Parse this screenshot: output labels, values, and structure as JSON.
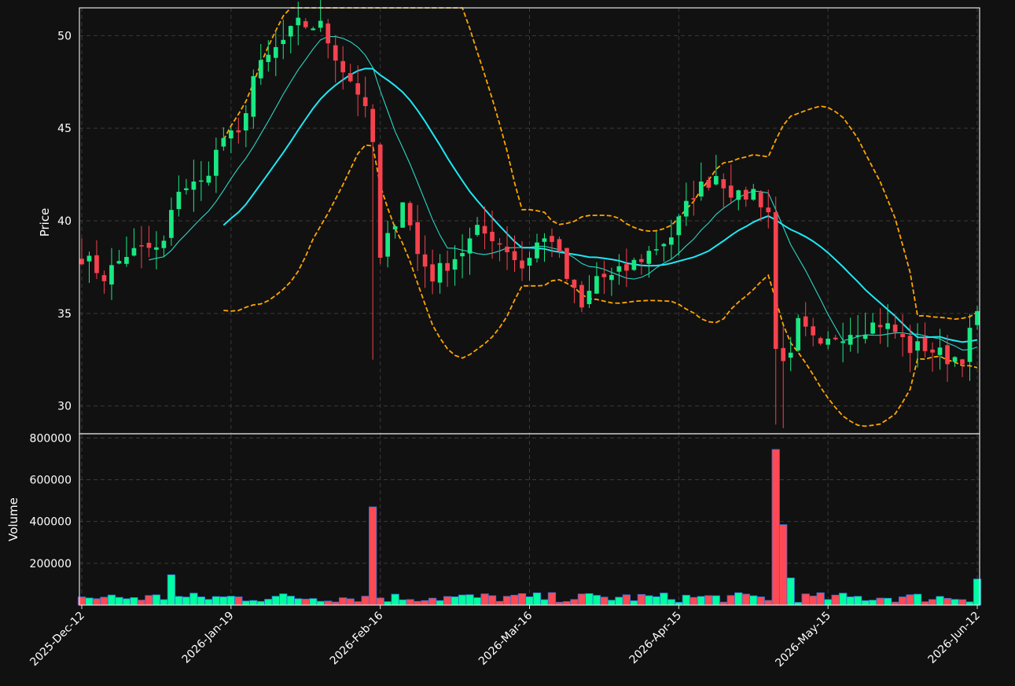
{
  "colors": {
    "background": "#111111",
    "up": "#19e883",
    "down": "#f5424e",
    "sma_fast": "#2bd6c6",
    "sma_slow": "#1ee8f5",
    "bollinger": "#ffa500",
    "volume_up": "#00ffa0",
    "volume_down": "#ff4a55",
    "volume_edge": "#2f6fd6"
  },
  "chart_data": {
    "type": "candlestick",
    "panels": [
      {
        "name": "price",
        "ylabel": "Price",
        "ylim": [
          28.5,
          51.5
        ],
        "yticks": [
          30,
          35,
          40,
          45,
          50
        ]
      },
      {
        "name": "volume",
        "ylabel": "Volume",
        "ylim": [
          0,
          820000
        ],
        "yticks": [
          200000,
          400000,
          600000,
          800000
        ]
      }
    ],
    "xtick_labels": [
      {
        "index": 0,
        "label": "2025-Dec-12"
      },
      {
        "index": 20,
        "label": "2026-Jan-19"
      },
      {
        "index": 40,
        "label": "2026-Feb-16"
      },
      {
        "index": 60,
        "label": "2026-Mar-16"
      },
      {
        "index": 80,
        "label": "2026-Apr-15"
      },
      {
        "index": 100,
        "label": "2026-May-15"
      },
      {
        "index": 120,
        "label": "2026-Jun-12"
      }
    ],
    "grid": true,
    "ohlc_anchors": [
      [
        0,
        38.1
      ],
      [
        3,
        37.0
      ],
      [
        6,
        38.2
      ],
      [
        9,
        38.5
      ],
      [
        10,
        38.4
      ],
      [
        11,
        38.8
      ],
      [
        13,
        41.8
      ],
      [
        16,
        42.0
      ],
      [
        19,
        44.5
      ],
      [
        21,
        44.5
      ],
      [
        23,
        47.8
      ],
      [
        25,
        48.8
      ],
      [
        29,
        50.6
      ],
      [
        32,
        50.5
      ],
      [
        35,
        48.2
      ],
      [
        37,
        47.0
      ],
      [
        38,
        45.8
      ],
      [
        39,
        44.2
      ],
      [
        40,
        37.8
      ],
      [
        41,
        39.0
      ],
      [
        43,
        41.2
      ],
      [
        45,
        38.2
      ],
      [
        47,
        37.0
      ],
      [
        49,
        37.7
      ],
      [
        51,
        38.4
      ],
      [
        53,
        39.4
      ],
      [
        55,
        39.2
      ],
      [
        57,
        38.5
      ],
      [
        59,
        37.5
      ],
      [
        61,
        38.8
      ],
      [
        63,
        39.1
      ],
      [
        65,
        36.9
      ],
      [
        67,
        35.2
      ],
      [
        69,
        37.0
      ],
      [
        71,
        36.9
      ],
      [
        73,
        37.4
      ],
      [
        76,
        38.3
      ],
      [
        79,
        39.2
      ],
      [
        82,
        41.5
      ],
      [
        85,
        42.5
      ],
      [
        88,
        41.2
      ],
      [
        90,
        41.6
      ],
      [
        92,
        40.5
      ],
      [
        93,
        33.0
      ],
      [
        95,
        32.5
      ],
      [
        96,
        34.4
      ],
      [
        99,
        33.0
      ],
      [
        101,
        33.8
      ],
      [
        104,
        34.2
      ],
      [
        107,
        34.5
      ],
      [
        109,
        34.0
      ],
      [
        111,
        33.1
      ],
      [
        113,
        33.2
      ],
      [
        116,
        32.6
      ],
      [
        118,
        32.7
      ],
      [
        120,
        35.0
      ]
    ],
    "notable_volume_spikes": [
      {
        "index": 12,
        "volume": 145000
      },
      {
        "index": 39,
        "volume": 470000
      },
      {
        "index": 93,
        "volume": 745000
      },
      {
        "index": 94,
        "volume": 385000
      },
      {
        "index": 95,
        "volume": 130000
      },
      {
        "index": 120,
        "volume": 125000
      }
    ],
    "overlays": [
      {
        "type": "sma",
        "window": 10,
        "color_key": "sma_fast"
      },
      {
        "type": "sma",
        "window": 20,
        "color_key": "sma_slow"
      },
      {
        "type": "bollinger",
        "window": 20,
        "stdev": 2,
        "color_key": "bollinger"
      }
    ]
  }
}
